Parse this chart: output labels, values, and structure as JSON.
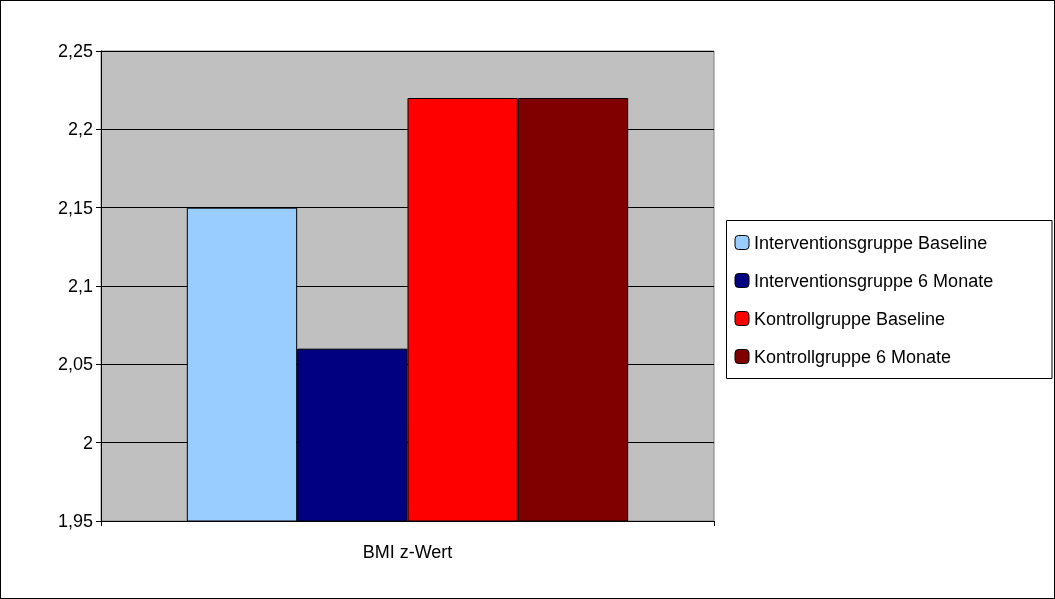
{
  "chart_data": {
    "type": "bar",
    "categories": [
      "BMI z-Wert"
    ],
    "series": [
      {
        "name": "Interventionsgruppe Baseline",
        "color": "#99ccff",
        "values": [
          2.15
        ]
      },
      {
        "name": "Interventionsgruppe 6 Monate",
        "color": "#000080",
        "values": [
          2.06
        ]
      },
      {
        "name": "Kontrollgruppe Baseline",
        "color": "#ff0000",
        "values": [
          2.22
        ]
      },
      {
        "name": "Kontrollgruppe 6 Monate",
        "color": "#800000",
        "values": [
          2.22
        ]
      }
    ],
    "ylim": [
      1.95,
      2.25
    ],
    "yticks": [
      {
        "value": 1.95,
        "label": "1,95"
      },
      {
        "value": 2,
        "label": "2"
      },
      {
        "value": 2.05,
        "label": "2,05"
      },
      {
        "value": 2.1,
        "label": "2,1"
      },
      {
        "value": 2.15,
        "label": "2,15"
      },
      {
        "value": 2.2,
        "label": "2,2"
      },
      {
        "value": 2.25,
        "label": "2,25"
      }
    ],
    "grid": "y",
    "legend": "right"
  }
}
